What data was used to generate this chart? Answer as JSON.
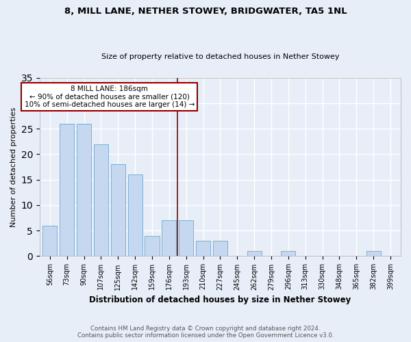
{
  "title": "8, MILL LANE, NETHER STOWEY, BRIDGWATER, TA5 1NL",
  "subtitle": "Size of property relative to detached houses in Nether Stowey",
  "xlabel": "Distribution of detached houses by size in Nether Stowey",
  "ylabel": "Number of detached properties",
  "categories": [
    "56sqm",
    "73sqm",
    "90sqm",
    "107sqm",
    "125sqm",
    "142sqm",
    "159sqm",
    "176sqm",
    "193sqm",
    "210sqm",
    "227sqm",
    "245sqm",
    "262sqm",
    "279sqm",
    "296sqm",
    "313sqm",
    "330sqm",
    "348sqm",
    "365sqm",
    "382sqm",
    "399sqm"
  ],
  "values": [
    6,
    26,
    26,
    22,
    18,
    16,
    4,
    7,
    7,
    3,
    3,
    0,
    1,
    0,
    1,
    0,
    0,
    0,
    0,
    1,
    0
  ],
  "bar_color": "#c5d8f0",
  "bar_edge_color": "#7bafd4",
  "property_line_x": 7.5,
  "property_line_color": "#8b0000",
  "annotation_text": "8 MILL LANE: 186sqm\n← 90% of detached houses are smaller (120)\n10% of semi-detached houses are larger (14) →",
  "annotation_box_color": "#ffffff",
  "annotation_box_edge": "#8b0000",
  "ylim": [
    0,
    35
  ],
  "yticks": [
    0,
    5,
    10,
    15,
    20,
    25,
    30,
    35
  ],
  "background_color": "#e8eef8",
  "grid_color": "#ffffff",
  "footer_line1": "Contains HM Land Registry data © Crown copyright and database right 2024.",
  "footer_line2": "Contains public sector information licensed under the Open Government Licence v3.0."
}
